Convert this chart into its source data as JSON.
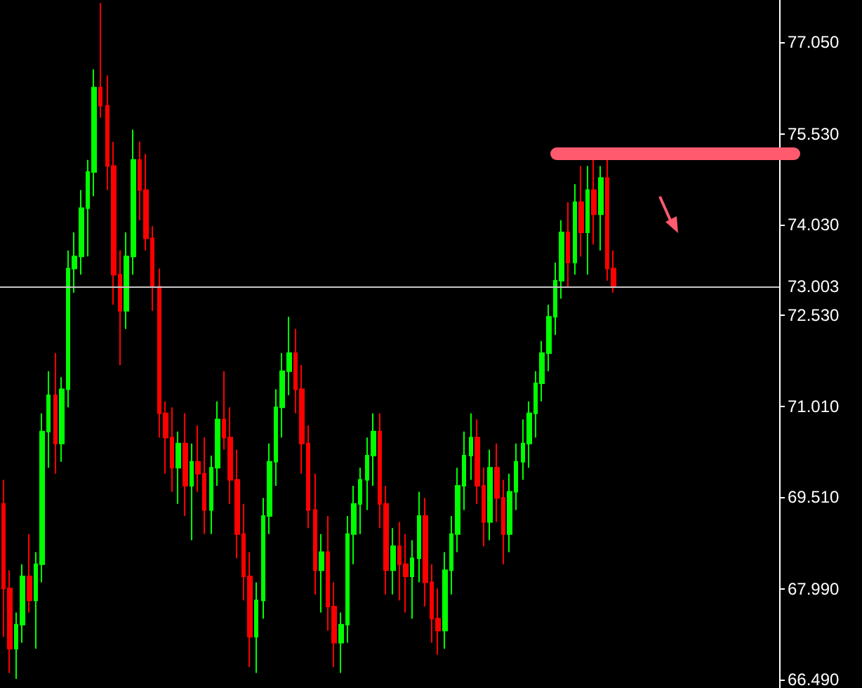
{
  "chart_data": {
    "type": "candlestick",
    "categories": [
      null,
      null,
      null,
      null,
      null,
      null,
      null,
      null,
      null,
      null,
      null,
      null,
      null,
      null,
      null,
      null,
      null,
      null,
      null,
      null,
      null,
      null,
      null,
      null,
      null,
      null,
      null,
      null,
      null,
      null,
      null,
      null,
      null,
      null,
      null,
      null,
      null,
      null,
      null,
      null,
      null,
      null,
      null,
      null,
      null,
      null,
      null,
      null,
      null,
      null,
      null,
      null,
      null,
      null,
      null,
      null,
      null,
      null,
      null,
      null,
      null,
      null,
      null,
      null,
      null,
      null,
      null,
      null,
      null,
      null,
      null,
      null,
      null,
      null,
      null,
      null,
      null,
      null,
      null,
      null,
      null,
      null,
      null,
      null,
      null,
      null,
      null,
      null,
      null,
      null,
      null,
      null,
      null,
      null,
      null,
      null,
      null,
      null,
      null,
      null,
      null,
      null,
      null,
      null,
      null,
      null,
      null,
      null,
      null,
      null,
      null,
      null,
      null,
      null,
      null,
      null,
      null,
      null,
      null,
      null
    ],
    "ohlc": [
      [
        69.4,
        69.8,
        67.2,
        68.0
      ],
      [
        68.0,
        68.3,
        66.6,
        67.0
      ],
      [
        67.0,
        67.6,
        66.5,
        67.4
      ],
      [
        67.4,
        68.4,
        67.1,
        68.2
      ],
      [
        68.2,
        68.9,
        67.6,
        67.8
      ],
      [
        67.8,
        68.6,
        67.0,
        68.4
      ],
      [
        68.4,
        70.9,
        68.1,
        70.6
      ],
      [
        70.6,
        71.6,
        70.0,
        71.2
      ],
      [
        71.2,
        71.9,
        69.9,
        70.4
      ],
      [
        70.4,
        71.5,
        70.1,
        71.3
      ],
      [
        71.3,
        73.6,
        71.0,
        73.3
      ],
      [
        73.3,
        73.9,
        72.9,
        73.5
      ],
      [
        73.5,
        74.6,
        73.2,
        74.3
      ],
      [
        74.3,
        75.1,
        73.5,
        74.9
      ],
      [
        74.9,
        76.6,
        74.5,
        76.3
      ],
      [
        76.3,
        77.7,
        75.8,
        76.0
      ],
      [
        76.0,
        76.5,
        74.6,
        75.0
      ],
      [
        75.0,
        75.4,
        72.7,
        73.2
      ],
      [
        73.2,
        73.6,
        71.7,
        72.6
      ],
      [
        72.6,
        73.9,
        72.3,
        73.5
      ],
      [
        73.5,
        75.6,
        73.2,
        75.1
      ],
      [
        75.1,
        75.4,
        74.1,
        74.6
      ],
      [
        74.6,
        75.2,
        73.6,
        73.8
      ],
      [
        73.8,
        74.0,
        72.6,
        73.0
      ],
      [
        73.0,
        73.3,
        70.5,
        70.9
      ],
      [
        70.9,
        71.1,
        69.9,
        70.5
      ],
      [
        70.5,
        71.0,
        69.6,
        70.0
      ],
      [
        70.0,
        70.6,
        69.4,
        70.4
      ],
      [
        70.4,
        70.9,
        69.2,
        69.7
      ],
      [
        69.7,
        70.4,
        68.8,
        70.1
      ],
      [
        70.1,
        70.7,
        69.6,
        69.9
      ],
      [
        69.9,
        70.5,
        68.9,
        69.3
      ],
      [
        69.3,
        70.2,
        68.9,
        70.0
      ],
      [
        70.0,
        71.1,
        69.7,
        70.8
      ],
      [
        70.8,
        71.6,
        70.3,
        70.5
      ],
      [
        70.5,
        71.0,
        69.4,
        69.8
      ],
      [
        69.8,
        70.3,
        68.5,
        68.9
      ],
      [
        68.9,
        69.4,
        67.8,
        68.2
      ],
      [
        68.2,
        68.6,
        66.7,
        67.2
      ],
      [
        67.2,
        68.1,
        66.6,
        67.8
      ],
      [
        67.8,
        69.5,
        67.5,
        69.2
      ],
      [
        69.2,
        70.4,
        68.9,
        70.1
      ],
      [
        70.1,
        71.3,
        69.7,
        71.0
      ],
      [
        71.0,
        71.9,
        70.5,
        71.6
      ],
      [
        71.6,
        72.5,
        71.2,
        71.9
      ],
      [
        71.9,
        72.3,
        70.9,
        71.3
      ],
      [
        71.3,
        71.7,
        69.9,
        70.4
      ],
      [
        70.4,
        70.7,
        69.0,
        69.3
      ],
      [
        69.3,
        69.9,
        67.9,
        68.3
      ],
      [
        68.3,
        68.9,
        67.6,
        68.6
      ],
      [
        68.6,
        69.2,
        67.3,
        67.7
      ],
      [
        67.7,
        68.1,
        66.7,
        67.1
      ],
      [
        67.1,
        67.6,
        66.6,
        67.4
      ],
      [
        67.4,
        69.2,
        67.1,
        68.9
      ],
      [
        68.9,
        69.7,
        68.4,
        69.4
      ],
      [
        69.4,
        70.0,
        68.9,
        69.8
      ],
      [
        69.8,
        70.5,
        69.3,
        70.2
      ],
      [
        70.2,
        70.9,
        69.7,
        70.6
      ],
      [
        70.6,
        70.9,
        69.0,
        69.4
      ],
      [
        69.4,
        69.7,
        67.9,
        68.3
      ],
      [
        68.3,
        69.0,
        67.9,
        68.7
      ],
      [
        68.7,
        69.1,
        67.8,
        68.4
      ],
      [
        68.4,
        68.9,
        67.6,
        68.2
      ],
      [
        68.2,
        68.8,
        67.5,
        68.5
      ],
      [
        68.5,
        69.6,
        68.1,
        69.2
      ],
      [
        69.2,
        69.5,
        67.7,
        68.1
      ],
      [
        68.1,
        68.4,
        67.1,
        67.5
      ],
      [
        67.5,
        68.0,
        66.9,
        67.3
      ],
      [
        67.3,
        68.6,
        67.0,
        68.3
      ],
      [
        68.3,
        69.2,
        67.9,
        68.9
      ],
      [
        68.9,
        70.0,
        68.6,
        69.7
      ],
      [
        69.7,
        70.6,
        69.3,
        70.2
      ],
      [
        70.2,
        70.9,
        69.8,
        70.5
      ],
      [
        70.5,
        70.8,
        69.4,
        69.7
      ],
      [
        69.7,
        70.0,
        68.7,
        69.1
      ],
      [
        69.1,
        70.3,
        68.8,
        70.0
      ],
      [
        70.0,
        70.4,
        69.1,
        69.5
      ],
      [
        69.5,
        69.8,
        68.4,
        68.9
      ],
      [
        68.9,
        69.9,
        68.6,
        69.6
      ],
      [
        69.6,
        70.4,
        69.3,
        70.1
      ],
      [
        70.1,
        70.8,
        69.8,
        70.4
      ],
      [
        70.4,
        71.1,
        70.0,
        70.9
      ],
      [
        70.9,
        71.6,
        70.5,
        71.4
      ],
      [
        71.4,
        72.1,
        71.1,
        71.9
      ],
      [
        71.9,
        72.7,
        71.6,
        72.5
      ],
      [
        72.5,
        73.4,
        72.2,
        73.1
      ],
      [
        73.1,
        74.1,
        72.8,
        73.9
      ],
      [
        73.9,
        74.4,
        73.0,
        73.4
      ],
      [
        73.4,
        74.7,
        73.2,
        74.4
      ],
      [
        74.4,
        75.0,
        73.5,
        73.9
      ],
      [
        73.9,
        75.0,
        73.2,
        74.6
      ],
      [
        74.6,
        75.1,
        73.7,
        74.2
      ],
      [
        74.2,
        75.0,
        73.6,
        74.8
      ],
      [
        74.8,
        75.1,
        73.1,
        73.3
      ],
      [
        73.3,
        73.6,
        72.9,
        73.0
      ],
      null,
      null,
      null,
      null,
      null,
      null,
      null,
      null,
      null,
      null,
      null,
      null,
      null,
      null,
      null,
      null,
      null,
      null,
      null,
      null,
      null,
      null,
      null,
      null,
      null
    ],
    "ylim": [
      66.35,
      77.75
    ],
    "yticks": [
      {
        "value": 66.49,
        "label": "66.490"
      },
      {
        "value": 67.99,
        "label": "67.990"
      },
      {
        "value": 69.51,
        "label": "69.510"
      },
      {
        "value": 71.01,
        "label": "71.010"
      },
      {
        "value": 72.53,
        "label": "72.530"
      },
      {
        "value": 74.03,
        "label": "74.030"
      },
      {
        "value": 75.53,
        "label": "75.530"
      },
      {
        "value": 77.05,
        "label": "77.050"
      }
    ],
    "ref_lines": [
      {
        "axis": "y",
        "value": 73.003,
        "label": "73.003",
        "color": "#c8c8c8"
      }
    ],
    "grid": false
  }
}
